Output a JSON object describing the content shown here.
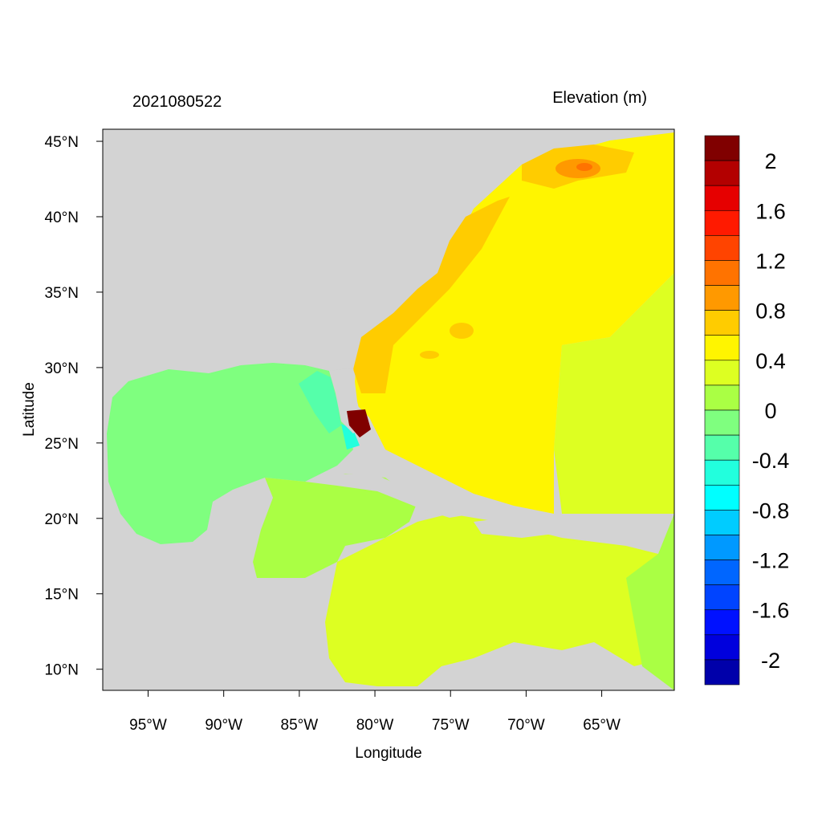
{
  "title_left": "2021080522",
  "title_right": "Elevation (m)",
  "x_axis_label": "Longitude",
  "y_axis_label": "Latitude",
  "x_ticks": [
    "95°W",
    "90°W",
    "85°W",
    "80°W",
    "75°W",
    "70°W",
    "65°W"
  ],
  "x_tick_values": [
    -95,
    -90,
    -85,
    -80,
    -75,
    -70,
    -65
  ],
  "y_ticks": [
    "45°N",
    "40°N",
    "35°N",
    "30°N",
    "25°N",
    "20°N",
    "15°N",
    "10°N"
  ],
  "y_tick_values": [
    45,
    40,
    35,
    30,
    25,
    20,
    15,
    10
  ],
  "map_extent": {
    "lon": [
      -98.0,
      -60.2
    ],
    "lat": [
      8.6,
      45.8
    ]
  },
  "land_color": "#D3D3D3",
  "colorbar": {
    "labels": [
      "2",
      "1.6",
      "1.2",
      "0.8",
      "0.4",
      "0",
      "-0.4",
      "-0.8",
      "-1.2",
      "-1.6",
      "-2"
    ],
    "colors": [
      "#800000",
      "#B30000",
      "#E60000",
      "#FF1A00",
      "#FF4400",
      "#FF7300",
      "#FF9900",
      "#FFCC00",
      "#FFF500",
      "#DDFF22",
      "#AAFF44",
      "#7FFF7F",
      "#55FFAA",
      "#22FFDD",
      "#00FFFF",
      "#00CCFF",
      "#0099FF",
      "#0066FF",
      "#0044FF",
      "#0011FF",
      "#0000DD",
      "#0000AA"
    ]
  }
}
